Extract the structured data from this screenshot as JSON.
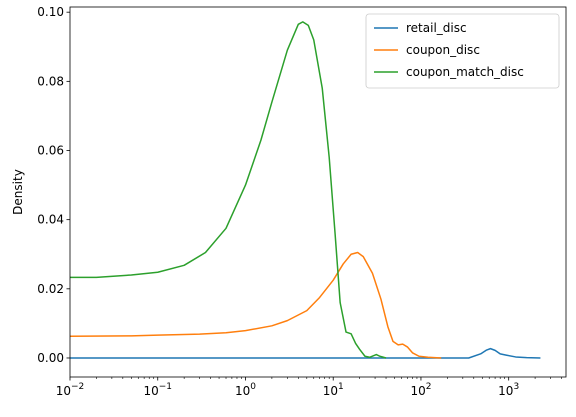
{
  "chart_data": {
    "type": "line",
    "title": "",
    "xlabel": "",
    "ylabel": "Density",
    "xscale": "log",
    "xlim": [
      0.01,
      4500
    ],
    "ylim": [
      -0.0055,
      0.1015
    ],
    "grid": false,
    "legend_position": "top-right",
    "x_ticks": [
      {
        "value": 0.01,
        "base": "10",
        "exp": "−2"
      },
      {
        "value": 0.1,
        "base": "10",
        "exp": "−1"
      },
      {
        "value": 1,
        "base": "10",
        "exp": "0"
      },
      {
        "value": 10,
        "base": "10",
        "exp": "1"
      },
      {
        "value": 100,
        "base": "10",
        "exp": "2"
      },
      {
        "value": 1000,
        "base": "10",
        "exp": "3"
      }
    ],
    "y_ticks": [
      "0.00",
      "0.02",
      "0.04",
      "0.06",
      "0.08",
      "0.10"
    ],
    "series": [
      {
        "name": "retail_disc",
        "color": "#1f77b4",
        "points": [
          [
            0.01,
            0.0
          ],
          [
            1,
            0.0
          ],
          [
            100,
            0.0
          ],
          [
            350,
            0.0
          ],
          [
            480,
            0.0012
          ],
          [
            560,
            0.0023
          ],
          [
            620,
            0.0027
          ],
          [
            700,
            0.0022
          ],
          [
            800,
            0.0012
          ],
          [
            950,
            0.0008
          ],
          [
            1200,
            0.0003
          ],
          [
            1600,
            0.0001
          ],
          [
            2300,
            0.0
          ]
        ]
      },
      {
        "name": "coupon_disc",
        "color": "#ff7f0e",
        "points": [
          [
            0.01,
            0.0063
          ],
          [
            0.05,
            0.0064
          ],
          [
            0.1,
            0.0066
          ],
          [
            0.3,
            0.0069
          ],
          [
            0.6,
            0.0073
          ],
          [
            1,
            0.0079
          ],
          [
            2,
            0.0093
          ],
          [
            3,
            0.0108
          ],
          [
            5,
            0.0137
          ],
          [
            7,
            0.0175
          ],
          [
            10,
            0.0225
          ],
          [
            13,
            0.0272
          ],
          [
            16,
            0.03
          ],
          [
            19,
            0.0305
          ],
          [
            22,
            0.0293
          ],
          [
            28,
            0.0245
          ],
          [
            35,
            0.017
          ],
          [
            42,
            0.009
          ],
          [
            48,
            0.0048
          ],
          [
            55,
            0.0038
          ],
          [
            62,
            0.004
          ],
          [
            70,
            0.0032
          ],
          [
            80,
            0.0015
          ],
          [
            95,
            0.0005
          ],
          [
            120,
            0.0002
          ],
          [
            170,
            0.0
          ]
        ]
      },
      {
        "name": "coupon_match_disc",
        "color": "#2ca02c",
        "points": [
          [
            0.01,
            0.0233
          ],
          [
            0.02,
            0.0233
          ],
          [
            0.05,
            0.024
          ],
          [
            0.1,
            0.0248
          ],
          [
            0.2,
            0.0268
          ],
          [
            0.35,
            0.0305
          ],
          [
            0.6,
            0.0375
          ],
          [
            1,
            0.05
          ],
          [
            1.5,
            0.063
          ],
          [
            2,
            0.074
          ],
          [
            3,
            0.089
          ],
          [
            4,
            0.0965
          ],
          [
            4.5,
            0.0972
          ],
          [
            5.2,
            0.0962
          ],
          [
            6,
            0.092
          ],
          [
            7.5,
            0.078
          ],
          [
            9,
            0.058
          ],
          [
            10.5,
            0.036
          ],
          [
            12,
            0.016
          ],
          [
            14,
            0.0075
          ],
          [
            16,
            0.007
          ],
          [
            18,
            0.0042
          ],
          [
            20,
            0.0025
          ],
          [
            23,
            0.0005
          ],
          [
            26,
            0.0002
          ],
          [
            31,
            0.001
          ],
          [
            34,
            0.0005
          ],
          [
            40,
            0.0
          ]
        ]
      }
    ]
  }
}
